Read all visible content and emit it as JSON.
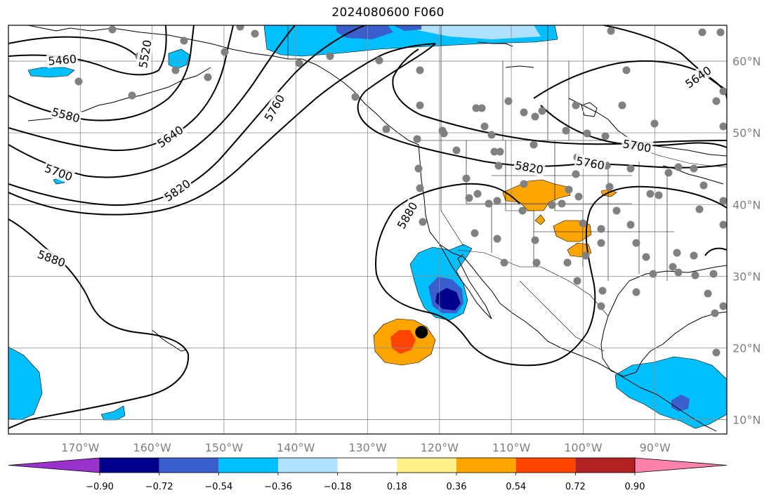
{
  "title": "2024080600 F060",
  "map": {
    "lon_range": [
      -180,
      -80
    ],
    "lat_range": [
      8,
      65
    ],
    "lat_ticks": [
      {
        "lat": 60,
        "label": "60°N"
      },
      {
        "lat": 50,
        "label": "50°N"
      },
      {
        "lat": 40,
        "label": "40°N"
      },
      {
        "lat": 30,
        "label": "30°N"
      },
      {
        "lat": 20,
        "label": "20°N"
      },
      {
        "lat": 10,
        "label": "10°N"
      }
    ],
    "lon_ticks": [
      {
        "lon": -170,
        "label": "170°W"
      },
      {
        "lon": -160,
        "label": "160°W"
      },
      {
        "lon": -150,
        "label": "150°W"
      },
      {
        "lon": -140,
        "label": "140°W"
      },
      {
        "lon": -130,
        "label": "130°W"
      },
      {
        "lon": -120,
        "label": "120°W"
      },
      {
        "lon": -110,
        "label": "110°W"
      },
      {
        "lon": -100,
        "label": "100°W"
      },
      {
        "lon": -90,
        "label": "90°W"
      }
    ],
    "contour_labels": [
      {
        "text": "5460",
        "lon": -172.5,
        "lat": 60.2,
        "angle": -5
      },
      {
        "text": "5520",
        "lon": -161,
        "lat": 61,
        "angle": -80
      },
      {
        "text": "5580",
        "lon": -172,
        "lat": 52.5,
        "angle": 15
      },
      {
        "text": "5640",
        "lon": -157.5,
        "lat": 49.5,
        "angle": -35
      },
      {
        "text": "5700",
        "lon": -173,
        "lat": 44.5,
        "angle": 20
      },
      {
        "text": "5760",
        "lon": -143,
        "lat": 53.5,
        "angle": -60
      },
      {
        "text": "5820",
        "lon": -156.5,
        "lat": 42,
        "angle": -35
      },
      {
        "text": "5880",
        "lon": -174,
        "lat": 32.5,
        "angle": 20
      },
      {
        "text": "5880",
        "lon": -124.5,
        "lat": 38.5,
        "angle": -60
      },
      {
        "text": "5820",
        "lon": -107.5,
        "lat": 45.2,
        "angle": 10
      },
      {
        "text": "5760",
        "lon": -99,
        "lat": 45.8,
        "angle": 10
      },
      {
        "text": "5700",
        "lon": -92.5,
        "lat": 48.2,
        "angle": 10
      },
      {
        "text": "5640",
        "lon": -84,
        "lat": 57.8,
        "angle": -35
      }
    ],
    "marker": {
      "lon": -122.5,
      "lat": 22.2
    }
  },
  "colorbar": {
    "colors": [
      "#9932cc",
      "#00008b",
      "#3a5fcd",
      "#00bfff",
      "#b0e2ff",
      "#ffffff",
      "#fff08c",
      "#ffa500",
      "#ff4500",
      "#b22222",
      "#ff82ab"
    ],
    "boundaries": [
      -0.9,
      -0.72,
      -0.54,
      -0.36,
      -0.18,
      0.18,
      0.36,
      0.54,
      0.72,
      0.9
    ],
    "labels": [
      "−0.90",
      "−0.72",
      "−0.54",
      "−0.36",
      "−0.18",
      "0.18",
      "0.36",
      "0.54",
      "0.72",
      "0.90"
    ]
  }
}
